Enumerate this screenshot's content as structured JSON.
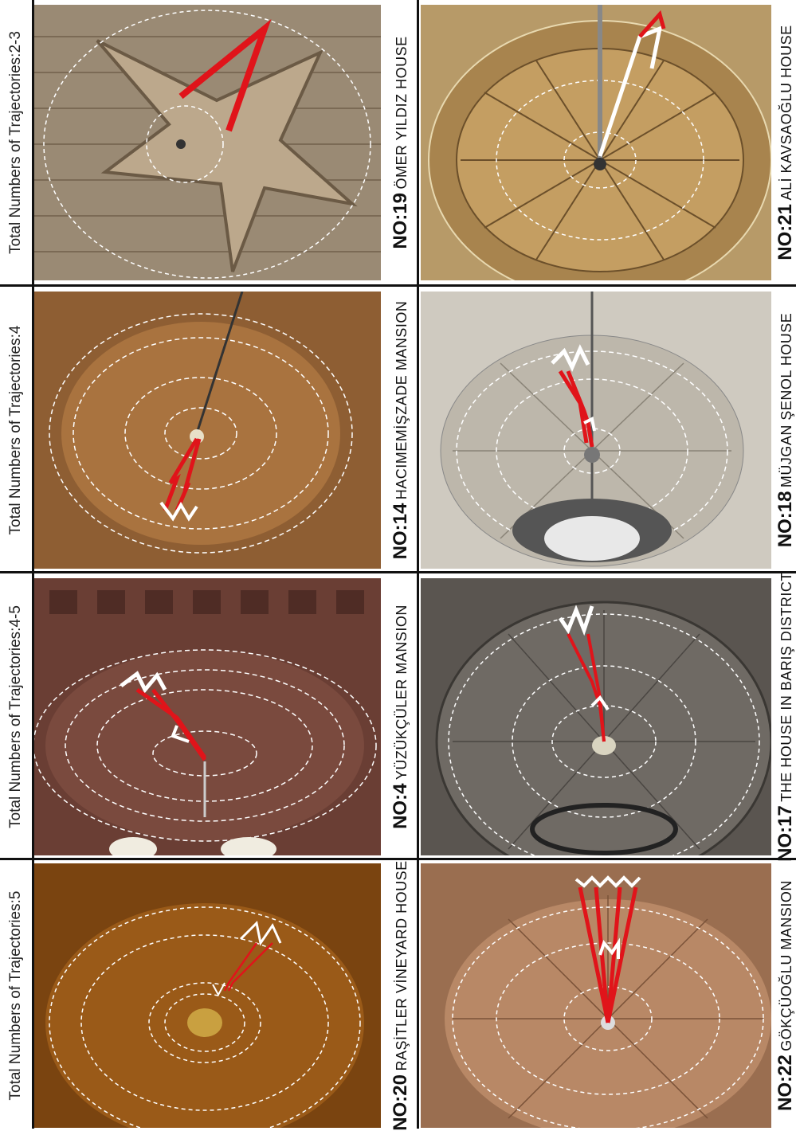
{
  "panels": [
    {
      "trajectories": "Total Numbers of Trajectories:2-3",
      "left": {
        "no": "NO:19",
        "name": "ÖMER YILDIZ HOUSE"
      },
      "right": {
        "no": "NO:21",
        "name": "ALİ KAVSAOĞLU HOUSE"
      }
    },
    {
      "trajectories": "Total Numbers of Trajectories:4",
      "left": {
        "no": "NO:14",
        "name": "HACIMEMİŞZADE  MANSION"
      },
      "right": {
        "no": "NO:18",
        "name": "MÜJGAN ŞENOL HOUSE"
      }
    },
    {
      "trajectories": "Total Numbers of Trajectories:4-5",
      "left": {
        "no": "NO:4",
        "name": "YÜZÜKÇÜLER  MANSION"
      },
      "right": {
        "no": "NO:17",
        "name": "THE HOUSE IN BARIŞ DISTRICT"
      }
    },
    {
      "trajectories": "Total Numbers of Trajectories:5",
      "left": {
        "no": "NO:20",
        "name": "RAŞİTLER VİNEYARD HOUSE"
      },
      "right": {
        "no": "NO:22",
        "name": "GÖKÇÜOĞLU MANSION"
      }
    }
  ]
}
